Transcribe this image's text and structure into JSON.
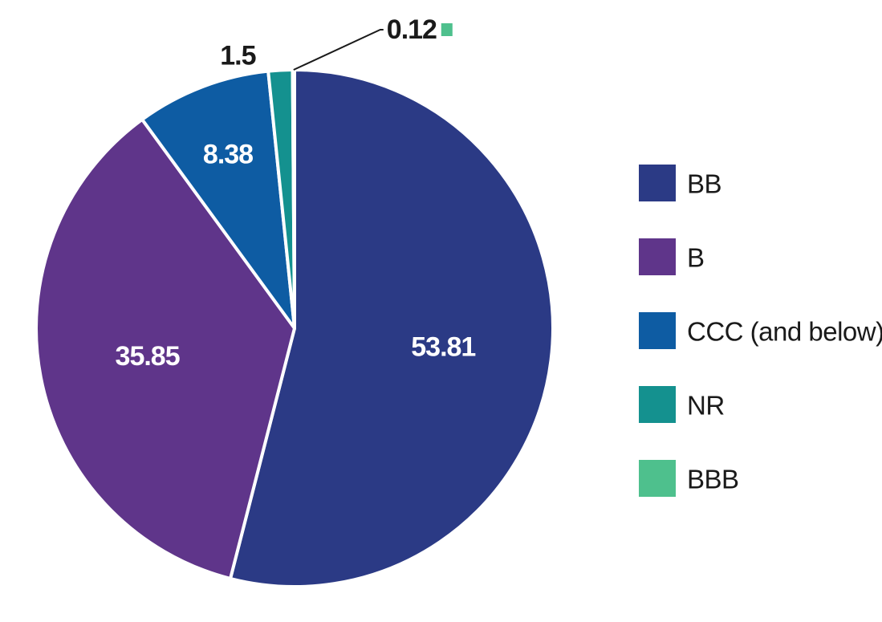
{
  "chart_data": {
    "type": "pie",
    "title": "",
    "legend_placement": "right",
    "start_angle_deg": 0,
    "direction": "clockwise",
    "slices": [
      {
        "label": "BB",
        "value": 53.81,
        "display": "53.81",
        "color": "#2b3a85",
        "label_style": "inside"
      },
      {
        "label": "B",
        "value": 35.85,
        "display": "35.85",
        "color": "#5f358a",
        "label_style": "inside"
      },
      {
        "label": "CCC (and below)",
        "value": 8.38,
        "display": "8.38",
        "color": "#0e5ca3",
        "label_style": "inside"
      },
      {
        "label": "NR",
        "value": 1.5,
        "display": "1.5",
        "color": "#14918f",
        "label_style": "outside"
      },
      {
        "label": "BBB",
        "value": 0.12,
        "display": "0.12",
        "color": "#4ec08d",
        "label_style": "callout"
      }
    ],
    "legend": [
      {
        "label": "BB",
        "color": "#2b3a85"
      },
      {
        "label": "B",
        "color": "#5f358a"
      },
      {
        "label": "CCC (and below)",
        "color": "#0e5ca3"
      },
      {
        "label": "NR",
        "color": "#14918f"
      },
      {
        "label": "BBB",
        "color": "#4ec08d"
      }
    ]
  }
}
